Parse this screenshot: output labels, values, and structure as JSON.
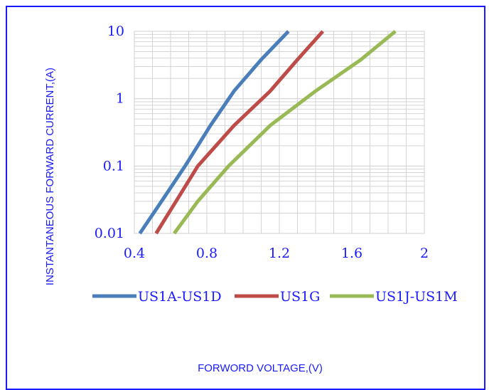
{
  "chart_data": {
    "type": "line",
    "xlabel": "FORWORD VOLTAGE,(V)",
    "ylabel": "INSTANTANEOUS FORWARD CURRENT,(A)",
    "xlim": [
      0.4,
      2.0
    ],
    "ylim": [
      0.01,
      10
    ],
    "yscale": "log",
    "grid": true,
    "legend_position": "bottom",
    "x_ticks": [
      "0.4",
      "0.8",
      "1.2",
      "1.6",
      "2"
    ],
    "y_ticks": [
      "0.01",
      "0.1",
      "1",
      "10"
    ],
    "series": [
      {
        "name": "US1A-US1D",
        "color": "#4a7ebb",
        "x": [
          0.43,
          0.55,
          0.68,
          0.82,
          0.95,
          1.1,
          1.25
        ],
        "y": [
          0.01,
          0.03,
          0.1,
          0.4,
          1.3,
          3.8,
          10
        ]
      },
      {
        "name": "US1G",
        "color": "#be4b48",
        "x": [
          0.52,
          0.63,
          0.75,
          0.95,
          1.15,
          1.3,
          1.44
        ],
        "y": [
          0.01,
          0.03,
          0.1,
          0.4,
          1.3,
          3.8,
          10
        ]
      },
      {
        "name": "US1J-US1M",
        "color": "#98b954",
        "x": [
          0.62,
          0.75,
          0.92,
          1.15,
          1.4,
          1.65,
          1.84
        ],
        "y": [
          0.01,
          0.03,
          0.1,
          0.4,
          1.3,
          3.8,
          10
        ]
      }
    ]
  }
}
